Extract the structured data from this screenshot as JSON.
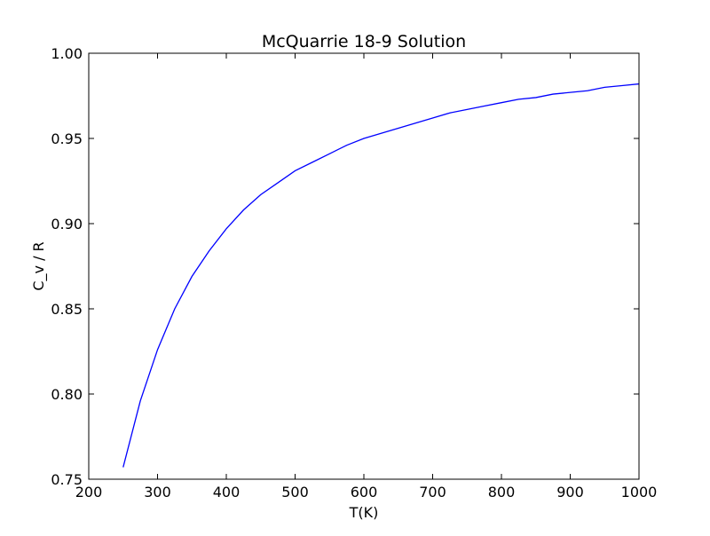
{
  "chart_data": {
    "type": "line",
    "title": "McQuarrie 18-9 Solution",
    "xlabel": "T(K)",
    "ylabel": "C_v / R",
    "xlim": [
      200,
      1000
    ],
    "ylim": [
      0.75,
      1.0
    ],
    "xticks": [
      200,
      300,
      400,
      500,
      600,
      700,
      800,
      900,
      1000
    ],
    "xtick_labels": [
      "200",
      "300",
      "400",
      "500",
      "600",
      "700",
      "800",
      "900",
      "1000"
    ],
    "yticks": [
      0.75,
      0.8,
      0.85,
      0.9,
      0.95,
      1.0
    ],
    "ytick_labels": [
      "0.75",
      "0.80",
      "0.85",
      "0.90",
      "0.95",
      "1.00"
    ],
    "grid": false,
    "series": [
      {
        "color": "#0000ff",
        "x": [
          250,
          275,
          300,
          325,
          350,
          375,
          400,
          425,
          450,
          475,
          500,
          525,
          550,
          575,
          600,
          625,
          650,
          675,
          700,
          725,
          750,
          775,
          800,
          825,
          850,
          875,
          900,
          925,
          950,
          975,
          1000
        ],
        "y": [
          0.757,
          0.796,
          0.826,
          0.85,
          0.869,
          0.884,
          0.897,
          0.908,
          0.917,
          0.924,
          0.931,
          0.936,
          0.941,
          0.946,
          0.95,
          0.953,
          0.956,
          0.959,
          0.962,
          0.965,
          0.967,
          0.969,
          0.971,
          0.973,
          0.974,
          0.976,
          0.977,
          0.978,
          0.98,
          0.981,
          0.982
        ]
      }
    ]
  }
}
